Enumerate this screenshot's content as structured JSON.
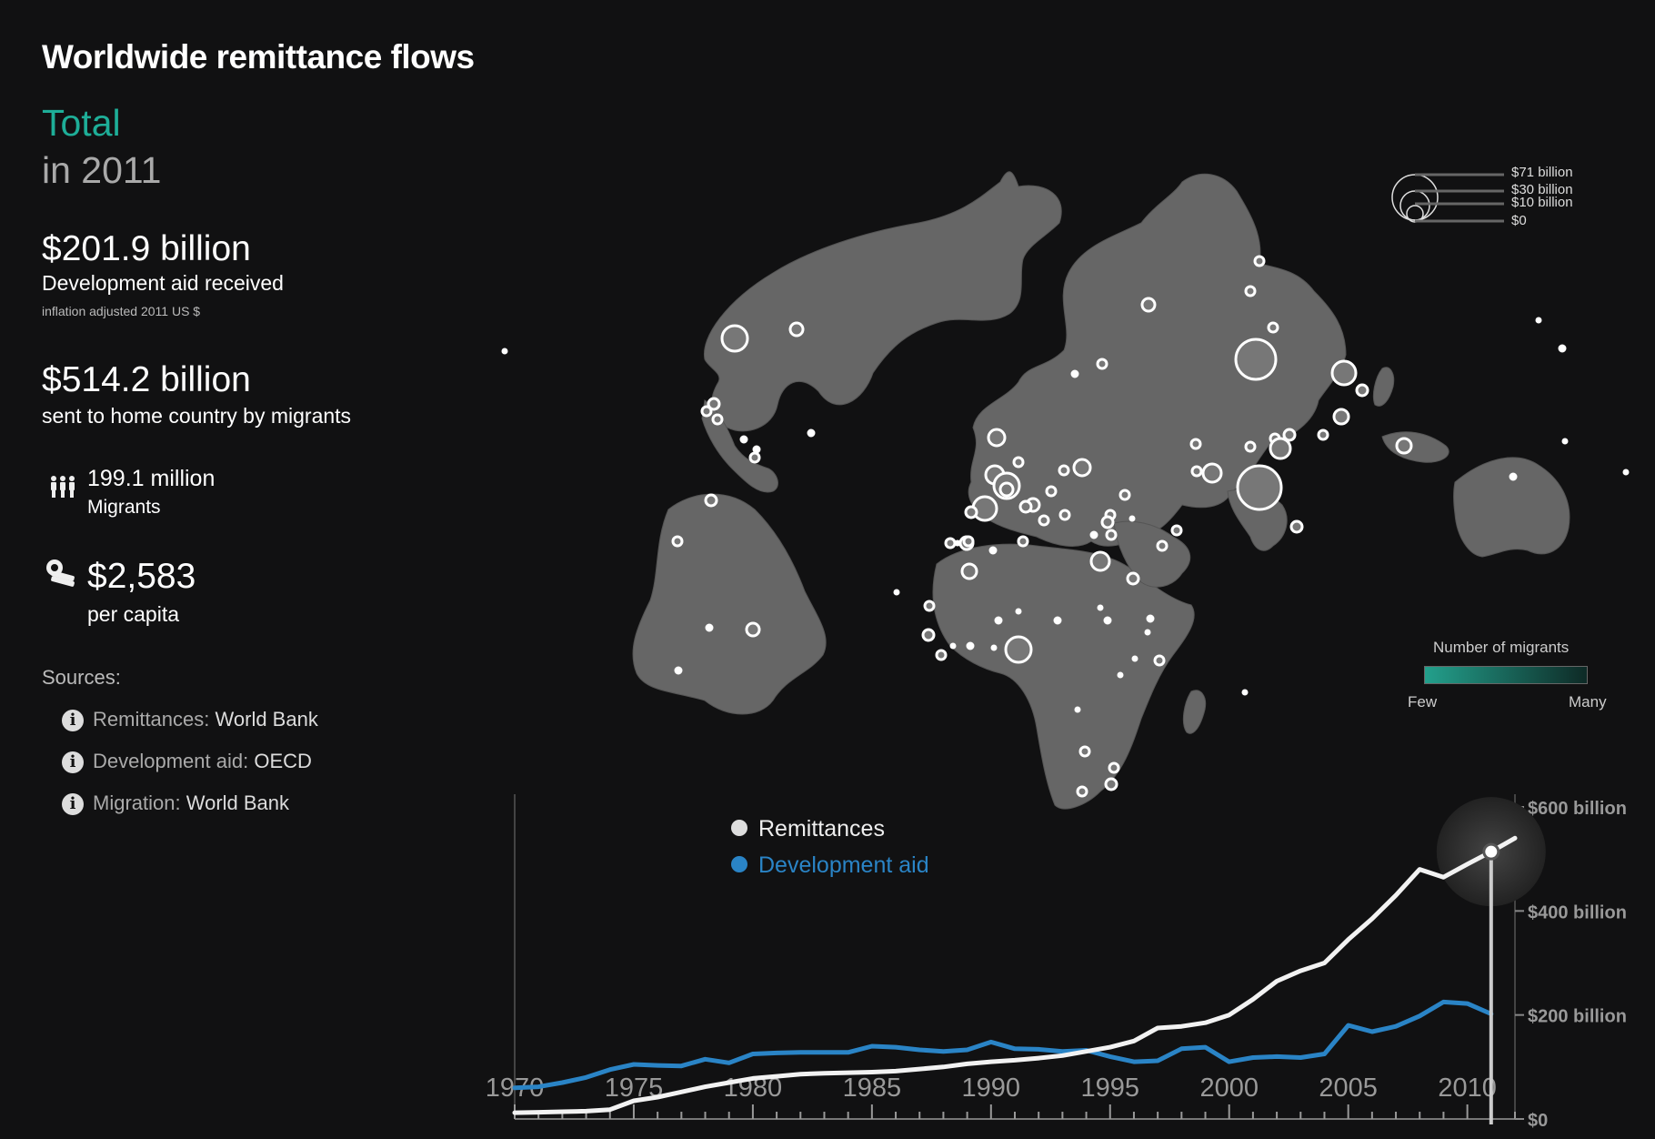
{
  "title": "Worldwide remittance flows",
  "region": "Total",
  "year_label": "in 2011",
  "stats": {
    "aid_value": "$201.9 billion",
    "aid_label": "Development aid received",
    "aid_note": "inflation adjusted 2011 US $",
    "remit_value": "$514.2 billion",
    "remit_label": "sent to home country by migrants",
    "migrants_value": "199.1 million",
    "migrants_label": "Migrants",
    "per_capita_value": "$2,583",
    "per_capita_label": "per capita"
  },
  "icons": {
    "migrants": "people-icon",
    "per_capita": "money-icon",
    "source": "info-icon",
    "selected_year": "year-marker-icon"
  },
  "sources": {
    "title": "Sources:",
    "items": [
      {
        "key": "Remittances:",
        "value": "World Bank"
      },
      {
        "key": "Development aid:",
        "value": "OECD"
      },
      {
        "key": "Migration:",
        "value": "World Bank"
      }
    ]
  },
  "map_legend": {
    "size_labels": [
      "$71 billion",
      "$30 billion",
      "$10 billion",
      "$0"
    ],
    "size_values_billion": [
      71,
      30,
      10,
      0
    ],
    "migrants_title": "Number of migrants",
    "few_label": "Few",
    "many_label": "Many"
  },
  "colors": {
    "background": "#111112",
    "land": "#666666",
    "accent_teal": "#1eae98",
    "remittances": "#f2f2f2",
    "development_aid": "#2a84c6"
  },
  "chart_data": {
    "type": "line",
    "x": [
      1970,
      1971,
      1972,
      1973,
      1974,
      1975,
      1976,
      1977,
      1978,
      1979,
      1980,
      1981,
      1982,
      1983,
      1984,
      1985,
      1986,
      1987,
      1988,
      1989,
      1990,
      1991,
      1992,
      1993,
      1994,
      1995,
      1996,
      1997,
      1998,
      1999,
      2000,
      2001,
      2002,
      2003,
      2004,
      2005,
      2006,
      2007,
      2008,
      2009,
      2010,
      2011,
      2012
    ],
    "series": [
      {
        "name": "Remittances",
        "color": "#f2f2f2",
        "values": [
          12,
          13,
          14,
          15,
          18,
          35,
          42,
          52,
          62,
          70,
          78,
          82,
          86,
          88,
          89,
          90,
          92,
          96,
          100,
          106,
          110,
          113,
          117,
          122,
          130,
          138,
          150,
          175,
          178,
          185,
          200,
          230,
          265,
          285,
          300,
          345,
          385,
          430,
          480,
          465,
          490,
          514,
          540
        ]
      },
      {
        "name": "Development aid",
        "color": "#2a84c6",
        "values": [
          60,
          62,
          70,
          80,
          95,
          105,
          103,
          102,
          115,
          108,
          125,
          127,
          128,
          128,
          128,
          140,
          138,
          133,
          130,
          133,
          148,
          135,
          134,
          130,
          132,
          120,
          110,
          112,
          135,
          138,
          110,
          118,
          120,
          118,
          125,
          180,
          168,
          178,
          198,
          225,
          222,
          202,
          null
        ]
      }
    ],
    "xticks": [
      "1970",
      "1975",
      "1980",
      "1985",
      "1990",
      "1995",
      "2000",
      "2005",
      "2010"
    ],
    "yticks": [
      "$600 billion",
      "$400 billion",
      "$200 billion",
      "$0"
    ],
    "ytick_values": [
      600,
      400,
      200,
      0
    ],
    "ylim": [
      0,
      600
    ],
    "xlim": [
      1970,
      2012
    ],
    "selected_year": 2011,
    "legend": "top-left",
    "grid": false
  }
}
